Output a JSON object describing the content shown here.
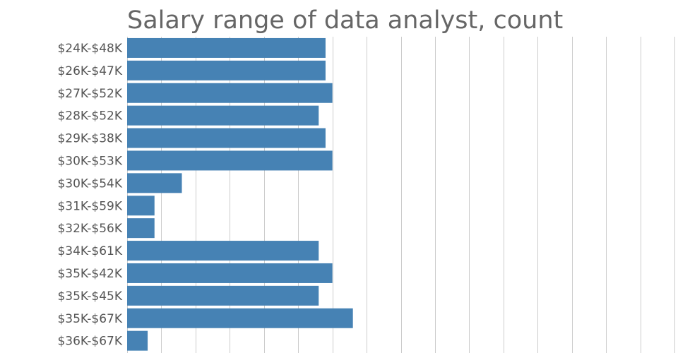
{
  "chart_data": {
    "type": "bar",
    "orientation": "horizontal",
    "title": "Salary range of data analyst, count",
    "xlabel": "",
    "ylabel": "",
    "categories": [
      "$24K-$48K",
      "$26K-$47K",
      "$27K-$52K",
      "$28K-$52K",
      "$29K-$38K",
      "$30K-$53K",
      "$30K-$54K",
      "$31K-$59K",
      "$32K-$56K",
      "$34K-$61K",
      "$35K-$42K",
      "$35K-$45K",
      "$35K-$67K",
      "$36K-$67K"
    ],
    "values": [
      29,
      29,
      30,
      28,
      29,
      30,
      8,
      4,
      4,
      28,
      30,
      28,
      33,
      3
    ],
    "xlim": [
      0,
      80
    ],
    "grid": true,
    "bar_color": "#4682b4"
  }
}
